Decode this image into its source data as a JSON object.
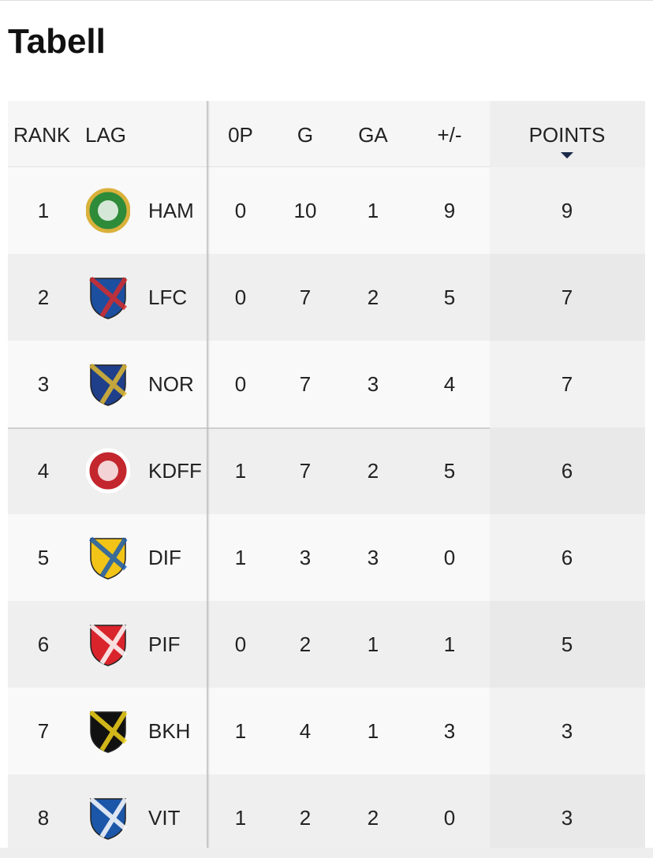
{
  "title": "Tabell",
  "table": {
    "header": [
      "RANK",
      "LAG",
      "0P",
      "G",
      "GA",
      "+/-",
      "POINTS"
    ],
    "rows": [
      [
        1,
        "HAM",
        0,
        10,
        1,
        9,
        9
      ],
      [
        2,
        "LFC",
        0,
        7,
        2,
        5,
        7
      ],
      [
        3,
        "NOR",
        0,
        7,
        3,
        4,
        7
      ],
      [
        4,
        "KDFF",
        1,
        7,
        2,
        5,
        6
      ],
      [
        5,
        "DIF",
        1,
        3,
        3,
        0,
        6
      ],
      [
        6,
        "PIF",
        0,
        2,
        1,
        1,
        5
      ],
      [
        7,
        "BKH",
        1,
        4,
        1,
        3,
        3
      ],
      [
        8,
        "VIT",
        1,
        2,
        2,
        0,
        3
      ]
    ]
  }
}
